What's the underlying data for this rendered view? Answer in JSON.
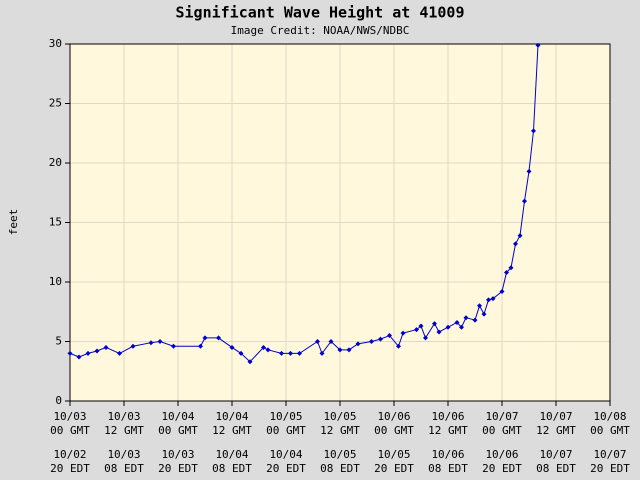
{
  "chart_data": {
    "type": "line",
    "title": "Significant Wave Height at 41009",
    "subtitle": "Image Credit: NOAA/NWS/NDBC",
    "y_label": "feet",
    "x": [
      0,
      2,
      4,
      6,
      8,
      11,
      14,
      18,
      20,
      23,
      29,
      30,
      33,
      36,
      38,
      40,
      43,
      44,
      47,
      49,
      51,
      55,
      56,
      58,
      60,
      62,
      64,
      67,
      69,
      71,
      73,
      74,
      77,
      78,
      79,
      81,
      82,
      84,
      86,
      87,
      88,
      90,
      91,
      92,
      93,
      94,
      96,
      97,
      98,
      99,
      100,
      101,
      102,
      103,
      104
    ],
    "series": [
      {
        "name": "Significant Wave Height",
        "color": "#0000cc",
        "values": [
          4.0,
          3.7,
          4.0,
          4.2,
          4.5,
          4.0,
          4.6,
          4.9,
          5.0,
          4.6,
          4.6,
          5.3,
          5.3,
          4.5,
          4.0,
          3.3,
          4.5,
          4.3,
          4.0,
          4.0,
          4.0,
          5.0,
          4.0,
          5.0,
          4.3,
          4.3,
          4.8,
          5.0,
          5.2,
          5.5,
          4.6,
          5.7,
          6.0,
          6.3,
          5.3,
          6.5,
          5.8,
          6.2,
          6.6,
          6.2,
          7.0,
          6.8,
          8.0,
          7.3,
          8.5,
          8.6,
          9.2,
          10.8,
          11.2,
          13.2,
          13.9,
          16.8,
          19.3,
          22.7,
          29.9
        ]
      }
    ],
    "xlim": [
      0,
      120
    ],
    "xticks": [
      {
        "value": 0,
        "label": "10/03\n00 GMT"
      },
      {
        "value": 12,
        "label": "10/03\n12 GMT"
      },
      {
        "value": 24,
        "label": "10/04\n00 GMT"
      },
      {
        "value": 36,
        "label": "10/04\n12 GMT"
      },
      {
        "value": 48,
        "label": "10/05\n00 GMT"
      },
      {
        "value": 60,
        "label": "10/05\n12 GMT"
      },
      {
        "value": 72,
        "label": "10/06\n00 GMT"
      },
      {
        "value": 84,
        "label": "10/06\n12 GMT"
      },
      {
        "value": 96,
        "label": "10/07\n00 GMT"
      },
      {
        "value": 108,
        "label": "10/07\n12 GMT"
      },
      {
        "value": 120,
        "label": "10/08\n00 GMT"
      }
    ],
    "xticks_local": [
      {
        "value": 0,
        "label": "10/02\n20 EDT"
      },
      {
        "value": 12,
        "label": "10/03\n08 EDT"
      },
      {
        "value": 24,
        "label": "10/03\n20 EDT"
      },
      {
        "value": 36,
        "label": "10/04\n08 EDT"
      },
      {
        "value": 48,
        "label": "10/04\n20 EDT"
      },
      {
        "value": 60,
        "label": "10/05\n08 EDT"
      },
      {
        "value": 72,
        "label": "10/05\n20 EDT"
      },
      {
        "value": 84,
        "label": "10/06\n08 EDT"
      },
      {
        "value": 96,
        "label": "10/06\n20 EDT"
      },
      {
        "value": 108,
        "label": "10/07\n08 EDT"
      },
      {
        "value": 120,
        "label": "10/07\n20 EDT"
      }
    ],
    "ylim": [
      0,
      30
    ],
    "yticks": [
      0,
      5,
      10,
      15,
      20,
      25,
      30
    ],
    "grid": true
  }
}
